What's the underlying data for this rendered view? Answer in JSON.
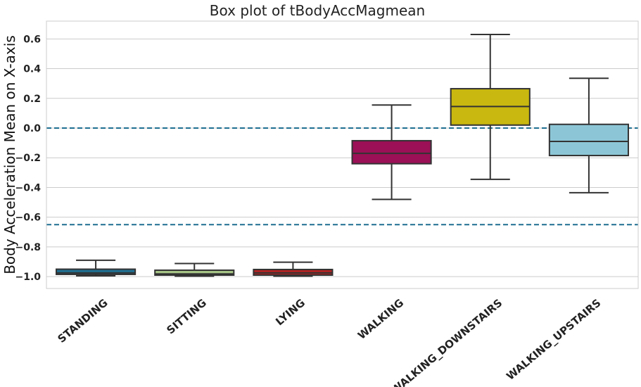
{
  "chart_data": {
    "type": "box",
    "title": "Box plot of tBodyAccMagmean",
    "xlabel": "",
    "ylabel": "Body Acceleration Mean on X-axis",
    "ylim": [
      -1.08,
      0.72
    ],
    "yticks": [
      -1.0,
      -0.8,
      -0.6,
      -0.4,
      -0.2,
      0.0,
      0.2,
      0.4,
      0.6
    ],
    "ytick_labels": [
      "−1.0",
      "−0.8",
      "−0.6",
      "−0.4",
      "−0.2",
      "0.0",
      "0.2",
      "0.4",
      "0.6"
    ],
    "grid": "horizontal",
    "categories": [
      "STANDING",
      "SITTING",
      "LYING",
      "WALKING",
      "WALKING_DOWNSTAIRS",
      "WALKING_UPSTAIRS"
    ],
    "boxes": [
      {
        "category": "STANDING",
        "whisker_low": -0.995,
        "q1": -0.985,
        "median": -0.975,
        "q3": -0.95,
        "whisker_high": -0.89,
        "color": "#1f6f91"
      },
      {
        "category": "SITTING",
        "whisker_low": -0.997,
        "q1": -0.99,
        "median": -0.982,
        "q3": -0.957,
        "whisker_high": -0.912,
        "color": "#a7c586"
      },
      {
        "category": "LYING",
        "whisker_low": -0.997,
        "q1": -0.99,
        "median": -0.975,
        "q3": -0.952,
        "whisker_high": -0.903,
        "color": "#b22222"
      },
      {
        "category": "WALKING",
        "whisker_low": -0.48,
        "q1": -0.24,
        "median": -0.17,
        "q3": -0.085,
        "whisker_high": 0.155,
        "color": "#9b1056"
      },
      {
        "category": "WALKING_DOWNSTAIRS",
        "whisker_low": -0.345,
        "q1": 0.02,
        "median": 0.145,
        "q3": 0.265,
        "whisker_high": 0.63,
        "color": "#c9b80f"
      },
      {
        "category": "WALKING_UPSTAIRS",
        "whisker_low": -0.435,
        "q1": -0.185,
        "median": -0.09,
        "q3": 0.025,
        "whisker_high": 0.335,
        "color": "#8cc6d6"
      }
    ],
    "reference_lines": [
      {
        "y": 0.0,
        "style": "dashed",
        "color": "#1f6f91"
      },
      {
        "y": -0.65,
        "style": "dashed",
        "color": "#1f6f91"
      }
    ]
  }
}
